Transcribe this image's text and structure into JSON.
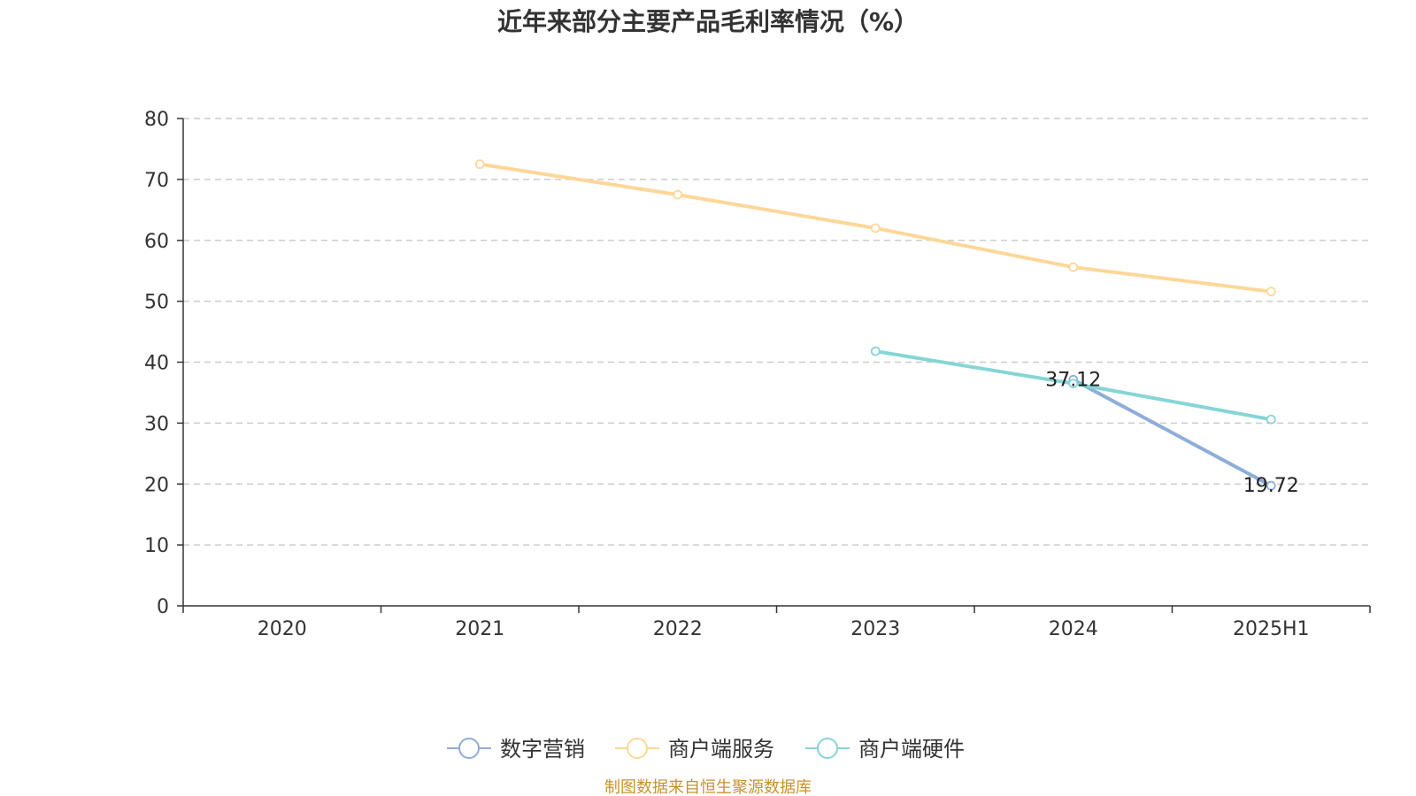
{
  "chart_data": {
    "type": "line",
    "title": "近年来部分主要产品毛利率情况（%）",
    "categories": [
      "2020",
      "2021",
      "2022",
      "2023",
      "2024",
      "2025H1"
    ],
    "ylim": [
      0,
      80
    ],
    "yticks": [
      0,
      10,
      20,
      30,
      40,
      50,
      60,
      70,
      80
    ],
    "grid": true,
    "legend_position": "bottom-center",
    "series": [
      {
        "name": "数字营销",
        "color": "#8eadd9",
        "values": [
          null,
          null,
          null,
          null,
          37.12,
          19.72
        ],
        "labels": [
          null,
          null,
          null,
          null,
          "37.12",
          "19.72"
        ]
      },
      {
        "name": "商户端服务",
        "color": "#fdd798",
        "values": [
          null,
          72.5,
          67.5,
          62.0,
          55.6,
          51.6
        ],
        "labels": [
          null,
          null,
          null,
          null,
          null,
          null
        ]
      },
      {
        "name": "商户端硬件",
        "color": "#86d5d6",
        "values": [
          null,
          null,
          null,
          41.8,
          36.5,
          30.6
        ],
        "labels": [
          null,
          null,
          null,
          null,
          null,
          null
        ]
      }
    ]
  },
  "source": "制图数据来自恒生聚源数据库"
}
